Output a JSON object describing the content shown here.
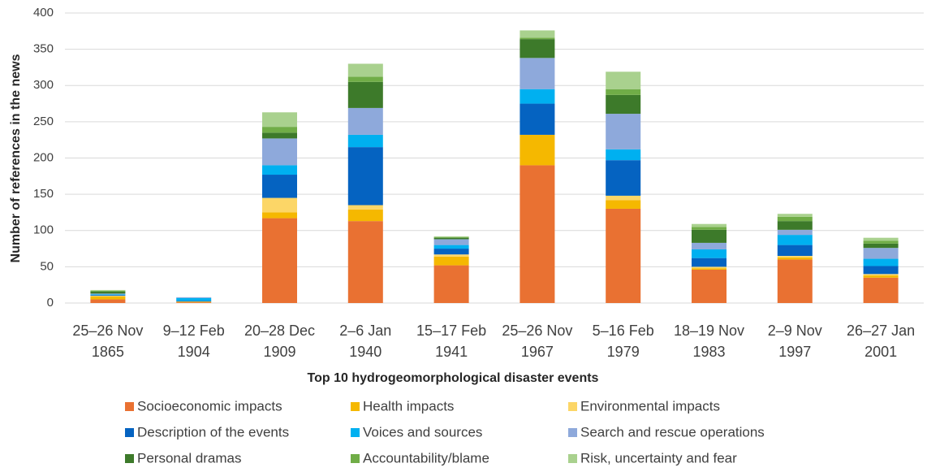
{
  "chart_data": {
    "type": "stacked_bar",
    "xlabel": "Top 10 hydrogeomorphological disaster events",
    "ylabel": "Number of references in the news",
    "categories": [
      [
        "25–26 Nov",
        "1865"
      ],
      [
        "9–12 Feb",
        "1904"
      ],
      [
        "20–28 Dec",
        "1909"
      ],
      [
        "2–6 Jan",
        "1940"
      ],
      [
        "15–17 Feb",
        "1941"
      ],
      [
        "25–26 Nov",
        "1967"
      ],
      [
        "5–16 Feb",
        "1979"
      ],
      [
        "18–19 Nov",
        "1983"
      ],
      [
        "2–9 Nov",
        "1997"
      ],
      [
        "26–27 Jan",
        "2001"
      ]
    ],
    "series": [
      {
        "name": "Socioeconomic impacts",
        "color": "#E97132",
        "values": [
          5,
          1,
          117,
          113,
          52,
          190,
          130,
          46,
          60,
          35
        ]
      },
      {
        "name": "Health impacts",
        "color": "#F5B800",
        "values": [
          4,
          1,
          8,
          16,
          12,
          42,
          12,
          2,
          3,
          3
        ]
      },
      {
        "name": "Environmental impacts",
        "color": "#FCD667",
        "values": [
          1,
          0,
          20,
          6,
          3,
          0,
          6,
          2,
          2,
          2
        ]
      },
      {
        "name": "Description of the events",
        "color": "#0563C1",
        "values": [
          1,
          1,
          32,
          80,
          8,
          43,
          49,
          12,
          15,
          11
        ]
      },
      {
        "name": "Voices and sources",
        "color": "#00B0F0",
        "values": [
          1,
          4,
          13,
          17,
          5,
          20,
          15,
          12,
          14,
          10
        ]
      },
      {
        "name": "Search and rescue operations",
        "color": "#8EA9DB",
        "values": [
          1,
          1,
          37,
          37,
          8,
          43,
          49,
          9,
          7,
          15
        ]
      },
      {
        "name": "Personal dramas",
        "color": "#3D7A2A",
        "values": [
          3,
          0,
          8,
          36,
          2,
          26,
          26,
          18,
          12,
          6
        ]
      },
      {
        "name": "Accountability/blame",
        "color": "#70AD47",
        "values": [
          1,
          0,
          8,
          7,
          1,
          2,
          8,
          4,
          6,
          4
        ]
      },
      {
        "name": "Risk, uncertainty and fear",
        "color": "#A9D18E",
        "values": [
          1,
          0,
          20,
          18,
          1,
          10,
          24,
          4,
          4,
          4
        ]
      }
    ],
    "ylim": [
      0,
      400
    ],
    "yticks": [
      0,
      50,
      100,
      150,
      200,
      250,
      300,
      350,
      400
    ],
    "grid": true,
    "legend": "bottom"
  }
}
